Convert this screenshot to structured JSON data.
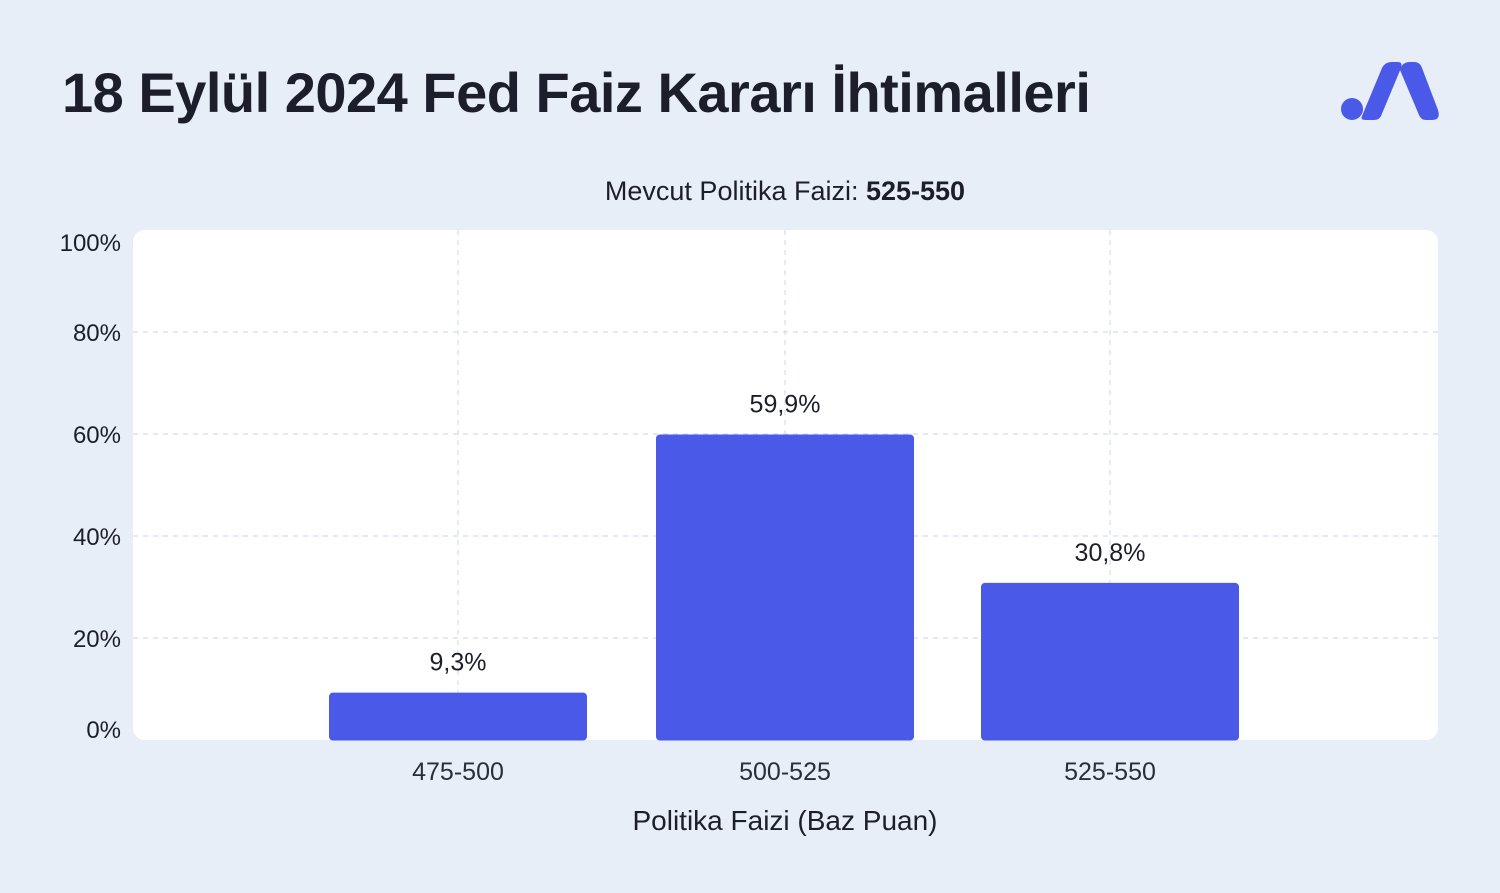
{
  "title": "18 Eylül 2024 Fed Faiz Kararı İhtimalleri",
  "subtitle": {
    "prefix": "Mevcut Politika Faizi: ",
    "value": "525-550"
  },
  "colors": {
    "background": "#e8eef8",
    "plot_bg": "#ffffff",
    "bar": "#4a59e8",
    "grid": "#d6dcec",
    "text": "#1c1f2b"
  },
  "chart_data": {
    "type": "bar",
    "categories": [
      "475-500",
      "500-525",
      "525-550"
    ],
    "values": [
      9.3,
      59.9,
      30.8
    ],
    "value_labels": [
      "9,3%",
      "59,9%",
      "30,8%"
    ],
    "xlabel": "Politika Faizi (Baz Puan)",
    "ylabel": "",
    "ylim": [
      0,
      100
    ],
    "yticks": [
      0,
      20,
      40,
      60,
      80,
      100
    ],
    "ytick_labels": [
      "0%",
      "20%",
      "40%",
      "60%",
      "80%",
      "100%"
    ],
    "grid": true
  }
}
